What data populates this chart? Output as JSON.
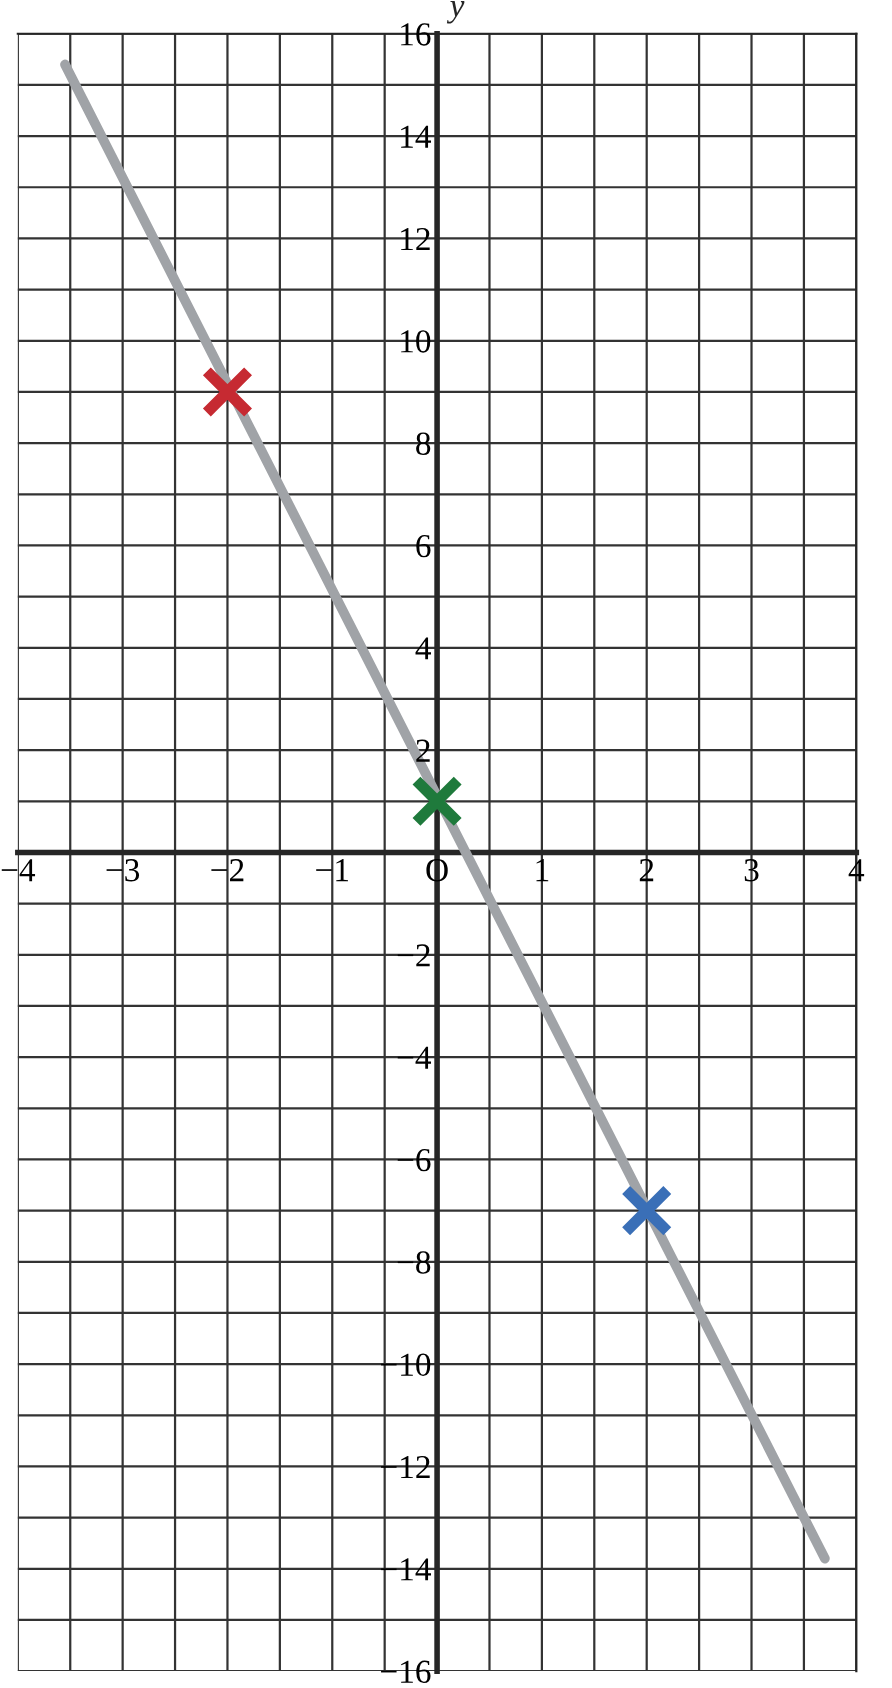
{
  "chart_data": {
    "type": "line",
    "ylabel": "y",
    "series": [
      {
        "x": [
          -3.55,
          3.7
        ],
        "values": [
          15.4,
          -13.8
        ],
        "color": "#a0a3a7",
        "marker": "none"
      },
      {
        "type": "scatter",
        "x": [
          -2,
          0,
          2
        ],
        "values": [
          9,
          1,
          -7
        ],
        "colors": [
          "#c62a32",
          "#1f7a3c",
          "#3a6fb7"
        ],
        "marker": "cross"
      }
    ],
    "xlim": [
      -4,
      4
    ],
    "ylim": [
      -16,
      16
    ],
    "xticks": [
      -4,
      {
        "value": -3.5,
        "label": null
      },
      -3,
      {
        "value": -2.5,
        "label": null
      },
      -2,
      {
        "value": -1.5,
        "label": null
      },
      -1,
      {
        "value": -0.5,
        "label": null
      },
      {
        "value": 0,
        "label": "O"
      },
      {
        "value": 0.5,
        "label": null
      },
      1,
      {
        "value": 1.5,
        "label": null
      },
      2,
      {
        "value": 2.5,
        "label": null
      },
      3,
      {
        "value": 3.5,
        "label": null
      },
      4
    ],
    "yticks": [
      -16,
      {
        "value": -15,
        "label": null
      },
      -14,
      {
        "value": -13,
        "label": null
      },
      -12,
      {
        "value": -11,
        "label": null
      },
      -10,
      {
        "value": -9,
        "label": null
      },
      -8,
      {
        "value": -7,
        "label": null
      },
      -6,
      {
        "value": -5,
        "label": null
      },
      -4,
      {
        "value": -3,
        "label": null
      },
      -2,
      {
        "value": -1,
        "label": null
      },
      {
        "value": 0,
        "label": null
      },
      {
        "value": 1,
        "label": null
      },
      2,
      {
        "value": 3,
        "label": null
      },
      4,
      {
        "value": 5,
        "label": null
      },
      6,
      {
        "value": 7,
        "label": null
      },
      8,
      {
        "value": 9,
        "label": null
      },
      10,
      {
        "value": 11,
        "label": null
      },
      12,
      {
        "value": 13,
        "label": null
      },
      14,
      {
        "value": 15,
        "label": null
      },
      16
    ],
    "grid": true
  }
}
